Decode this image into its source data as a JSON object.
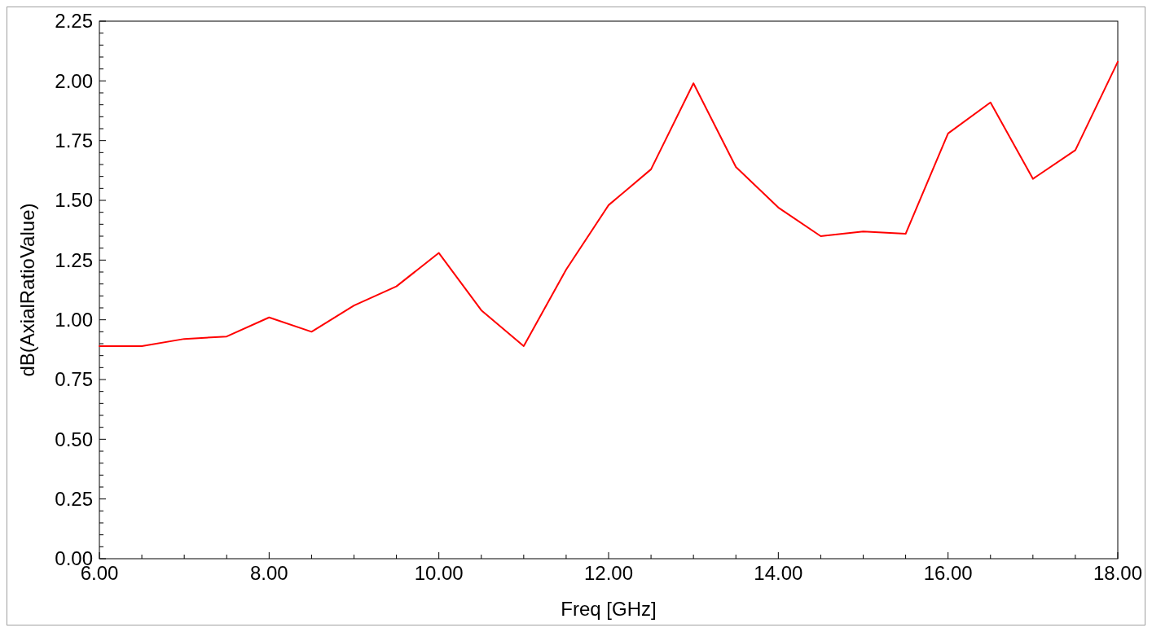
{
  "chart_data": {
    "type": "line",
    "xlabel": "Freq [GHz]",
    "ylabel": "dB(AxialRatioValue)",
    "x": [
      6,
      6.5,
      7,
      7.5,
      8,
      8.5,
      9,
      9.5,
      10,
      10.5,
      11,
      11.5,
      12,
      12.5,
      13,
      13.5,
      14,
      14.5,
      15,
      15.5,
      16,
      16.5,
      17,
      17.5,
      18
    ],
    "series": [
      {
        "color": "#ff0000",
        "values": [
          0.89,
          0.89,
          0.92,
          0.93,
          1.01,
          0.95,
          1.06,
          1.14,
          1.28,
          1.04,
          0.89,
          1.21,
          1.48,
          1.63,
          1.99,
          1.64,
          1.47,
          1.35,
          1.37,
          1.36,
          1.78,
          1.91,
          1.59,
          1.71,
          2.08
        ]
      }
    ],
    "xlim": [
      6,
      18
    ],
    "xticks": [
      {
        "value": 6,
        "label": "6.00"
      },
      {
        "value": 6.5,
        "label": null
      },
      {
        "value": 7,
        "label": null
      },
      {
        "value": 7.5,
        "label": null
      },
      {
        "value": 8,
        "label": "8.00"
      },
      {
        "value": 8.5,
        "label": null
      },
      {
        "value": 9,
        "label": null
      },
      {
        "value": 9.5,
        "label": null
      },
      {
        "value": 10,
        "label": "10.00"
      },
      {
        "value": 10.5,
        "label": null
      },
      {
        "value": 11,
        "label": null
      },
      {
        "value": 11.5,
        "label": null
      },
      {
        "value": 12,
        "label": "12.00"
      },
      {
        "value": 12.5,
        "label": null
      },
      {
        "value": 13,
        "label": null
      },
      {
        "value": 13.5,
        "label": null
      },
      {
        "value": 14,
        "label": "14.00"
      },
      {
        "value": 14.5,
        "label": null
      },
      {
        "value": 15,
        "label": null
      },
      {
        "value": 15.5,
        "label": null
      },
      {
        "value": 16,
        "label": "16.00"
      },
      {
        "value": 16.5,
        "label": null
      },
      {
        "value": 17,
        "label": null
      },
      {
        "value": 17.5,
        "label": null
      },
      {
        "value": 18,
        "label": "18.00"
      }
    ],
    "ylim": [
      0,
      2.25
    ],
    "yticks": [
      {
        "value": 0,
        "label": "0.00"
      },
      {
        "value": 0.05,
        "label": null
      },
      {
        "value": 0.1,
        "label": null
      },
      {
        "value": 0.15,
        "label": null
      },
      {
        "value": 0.2,
        "label": null
      },
      {
        "value": 0.25,
        "label": "0.25"
      },
      {
        "value": 0.3,
        "label": null
      },
      {
        "value": 0.35,
        "label": null
      },
      {
        "value": 0.4,
        "label": null
      },
      {
        "value": 0.45,
        "label": null
      },
      {
        "value": 0.5,
        "label": "0.50"
      },
      {
        "value": 0.55,
        "label": null
      },
      {
        "value": 0.6,
        "label": null
      },
      {
        "value": 0.65,
        "label": null
      },
      {
        "value": 0.7,
        "label": null
      },
      {
        "value": 0.75,
        "label": "0.75"
      },
      {
        "value": 0.8,
        "label": null
      },
      {
        "value": 0.85,
        "label": null
      },
      {
        "value": 0.9,
        "label": null
      },
      {
        "value": 0.95,
        "label": null
      },
      {
        "value": 1,
        "label": "1.00"
      },
      {
        "value": 1.05,
        "label": null
      },
      {
        "value": 1.1,
        "label": null
      },
      {
        "value": 1.15,
        "label": null
      },
      {
        "value": 1.2,
        "label": null
      },
      {
        "value": 1.25,
        "label": "1.25"
      },
      {
        "value": 1.3,
        "label": null
      },
      {
        "value": 1.35,
        "label": null
      },
      {
        "value": 1.4,
        "label": null
      },
      {
        "value": 1.45,
        "label": null
      },
      {
        "value": 1.5,
        "label": "1.50"
      },
      {
        "value": 1.55,
        "label": null
      },
      {
        "value": 1.6,
        "label": null
      },
      {
        "value": 1.65,
        "label": null
      },
      {
        "value": 1.7,
        "label": null
      },
      {
        "value": 1.75,
        "label": "1.75"
      },
      {
        "value": 1.8,
        "label": null
      },
      {
        "value": 1.85,
        "label": null
      },
      {
        "value": 1.9,
        "label": null
      },
      {
        "value": 1.95,
        "label": null
      },
      {
        "value": 2,
        "label": "2.00"
      },
      {
        "value": 2.05,
        "label": null
      },
      {
        "value": 2.1,
        "label": null
      },
      {
        "value": 2.15,
        "label": null
      },
      {
        "value": 2.2,
        "label": null
      },
      {
        "value": 2.25,
        "label": "2.25"
      }
    ],
    "line_style": "solid",
    "marker": "none"
  }
}
